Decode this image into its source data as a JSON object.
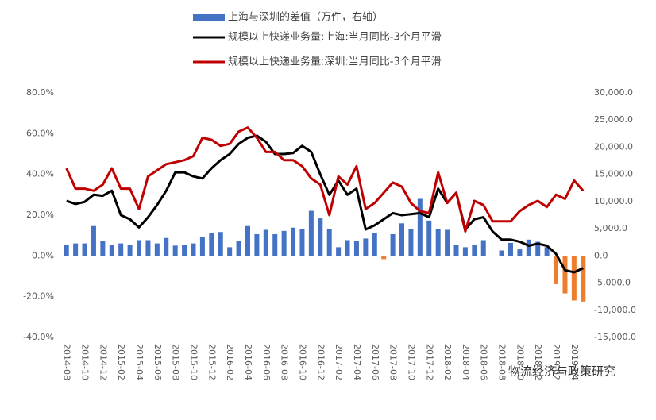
{
  "chart_data": {
    "type": "bar_line_dual",
    "categories": [
      "2014-08",
      null,
      "2014-10",
      null,
      "2014-12",
      null,
      "2015-02",
      null,
      "2015-04",
      null,
      "2015-06",
      null,
      "2015-08",
      null,
      "2015-10",
      null,
      "2015-12",
      null,
      "2016-02",
      null,
      "2016-04",
      null,
      "2016-06",
      null,
      "2016-08",
      null,
      "2016-10",
      null,
      "2016-12",
      null,
      "2017-02",
      null,
      "2017-04",
      null,
      "2017-06",
      null,
      "2017-08",
      null,
      "2017-10",
      null,
      "2017-12",
      null,
      "2018-02",
      null,
      "2018-04",
      null,
      "2018-06",
      null,
      "2018-08",
      null,
      "2018-10",
      null,
      "2018-12",
      null,
      "2019-02",
      null,
      "2019-04",
      null
    ],
    "series": [
      {
        "name": "上海与深圳的差值（万件，右轴）",
        "kind": "bar",
        "axis": "y2",
        "color": "#4472c4",
        "negative_color": "#ed7d31",
        "values": [
          2000,
          2300,
          2300,
          5500,
          2700,
          2000,
          2300,
          2000,
          2900,
          2900,
          2300,
          3300,
          1900,
          2000,
          2300,
          3500,
          4200,
          4400,
          1600,
          2700,
          5500,
          4000,
          4800,
          4000,
          4600,
          5200,
          5000,
          8300,
          6900,
          5000,
          1600,
          2900,
          2700,
          3200,
          4200,
          -600,
          4000,
          6000,
          5000,
          10500,
          6500,
          5000,
          4800,
          2000,
          1600,
          2000,
          2900,
          0,
          1000,
          2400,
          1200,
          3000,
          2600,
          1600,
          -5200,
          -6900,
          -8200,
          -8400
        ]
      },
      {
        "name": "规模以上快递业务量:上海:当月同比-3个月平滑",
        "kind": "line",
        "color": "#000000",
        "values": [
          27,
          25.5,
          26.5,
          30,
          29.5,
          32,
          20,
          18,
          14,
          19,
          25,
          32,
          41,
          41,
          39,
          38,
          43,
          47,
          50,
          55,
          58,
          59,
          56,
          50,
          50,
          50.5,
          54,
          51,
          40,
          30,
          37,
          30,
          33,
          13,
          15,
          18,
          21,
          20,
          20.5,
          21,
          19,
          33,
          26,
          31,
          13,
          18,
          19,
          12,
          8,
          8,
          7,
          5,
          6,
          5,
          1,
          -7,
          -8,
          -6
        ]
      },
      {
        "name": "规模以上快递业务量:深圳:当月同比-3个月平滑",
        "kind": "line",
        "color": "#c00000",
        "values": [
          43,
          33,
          33,
          32,
          35,
          43,
          33,
          33,
          23,
          39,
          42,
          45,
          46,
          47,
          49,
          58,
          57,
          54,
          55,
          61,
          63,
          58,
          51,
          51,
          47,
          47,
          44,
          38,
          35,
          20,
          39,
          35,
          44,
          23,
          26,
          31,
          36,
          34,
          26,
          22,
          21,
          41,
          26,
          31,
          12,
          27,
          25,
          17,
          17,
          17,
          22,
          25,
          27,
          24,
          30,
          28,
          37,
          32
        ]
      }
    ],
    "ylim": [
      -40,
      80
    ],
    "yticks": [
      {
        "value": -40,
        "label": "-40.0%"
      },
      {
        "value": -20,
        "label": "-20.0%"
      },
      {
        "value": 0,
        "label": "0.0%"
      },
      {
        "value": 20,
        "label": "20.0%"
      },
      {
        "value": 40,
        "label": "40.0%"
      },
      {
        "value": 60,
        "label": "60.0%"
      },
      {
        "value": 80,
        "label": "80.0%"
      }
    ],
    "y2lim": [
      -15000,
      30000
    ],
    "y2ticks": [
      {
        "value": -15000,
        "label": "-15,000.0"
      },
      {
        "value": -10000,
        "label": "-10,000.0"
      },
      {
        "value": -5000,
        "label": "-5,000.0"
      },
      {
        "value": 0,
        "label": "0.0"
      },
      {
        "value": 5000,
        "label": "5,000.0"
      },
      {
        "value": 10000,
        "label": "10,000.0"
      },
      {
        "value": 15000,
        "label": "15,000.0"
      },
      {
        "value": 20000,
        "label": "20,000.0"
      },
      {
        "value": 25000,
        "label": "25,000.0"
      },
      {
        "value": 30000,
        "label": "30,000.0"
      }
    ],
    "watermark": "物流经济与政策研究"
  }
}
